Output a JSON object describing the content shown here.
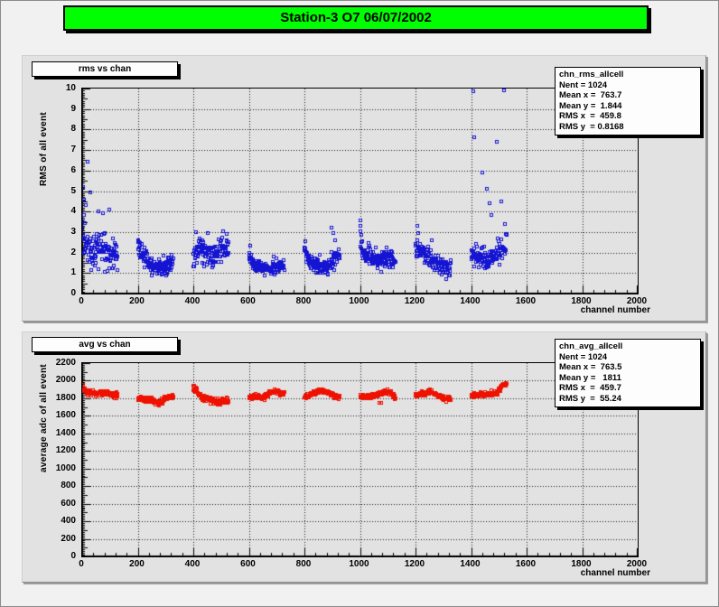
{
  "window": {
    "title": "Station-3 O7 06/07/2002",
    "title_bg": "#00ff00"
  },
  "top_plot": {
    "title": "rms vs chan",
    "y_title": "RMS of all event",
    "x_title": "channel number",
    "stats_lines": [
      "chn_rms_allcell",
      "Nent = 1024  ",
      "Mean x =  763.7",
      "Mean y =  1.844",
      "RMS x  =  459.8",
      "RMS y  = 0.8168"
    ]
  },
  "bottom_plot": {
    "title": "avg vs chan",
    "y_title": "average adc of all event",
    "x_title": "channel number",
    "stats_lines": [
      "chn_avg_allcell",
      "Nent = 1024  ",
      "Mean x =  763.5",
      "Mean y =   1811",
      "RMS x  =  459.7",
      "RMS y  =  55.24"
    ]
  },
  "chart_data": [
    {
      "type": "scatter",
      "title": "rms vs chan",
      "xlabel": "channel number",
      "ylabel": "RMS of all event",
      "xlim": [
        0,
        2000
      ],
      "ylim": [
        0,
        10
      ],
      "x_major": 200,
      "x_minor": 40,
      "y_major": 1,
      "y_mid": 0.5,
      "y_minor": 0.1,
      "grid": "dotted",
      "marker": "open-square",
      "marker_color": "#1414d2",
      "stats": {
        "name": "chn_rms_allcell",
        "entries": 1024,
        "mean_x": 763.7,
        "mean_y": 1.844,
        "rms_x": 459.8,
        "rms_y": 0.8168
      },
      "groups": [
        {
          "seed": 101,
          "n": 128,
          "x_start": 0,
          "x_step": 1,
          "sigma": 0.42,
          "ctrl": [
            [
              0,
              3.1
            ],
            [
              12,
              2.7
            ],
            [
              25,
              2.1
            ],
            [
              45,
              2.0
            ],
            [
              62,
              2.5
            ],
            [
              78,
              2.2
            ],
            [
              100,
              2.0
            ],
            [
              127,
              2.05
            ]
          ],
          "outliers": {
            "2": 5.2,
            "5": 4.6,
            "8": 3.85,
            "14": 4.3,
            "20": 6.45,
            "28": 4.95,
            "58": 4.0,
            "74": 3.9,
            "96": 4.1,
            "34": 1.15,
            "60": 1.2,
            "82": 1.05
          }
        },
        {
          "seed": 102,
          "n": 128,
          "x_start": 200,
          "x_step": 1,
          "sigma": 0.22,
          "ctrl": [
            [
              0,
              2.15
            ],
            [
              25,
              1.8
            ],
            [
              55,
              1.35
            ],
            [
              85,
              1.3
            ],
            [
              110,
              1.5
            ],
            [
              127,
              1.6
            ]
          ],
          "outliers": {
            "3": 2.6,
            "7": 2.45,
            "90": 0.95
          }
        },
        {
          "seed": 103,
          "n": 128,
          "x_start": 400,
          "x_step": 1,
          "sigma": 0.3,
          "ctrl": [
            [
              0,
              1.8
            ],
            [
              20,
              2.2
            ],
            [
              45,
              2.0
            ],
            [
              70,
              1.8
            ],
            [
              95,
              2.2
            ],
            [
              127,
              2.3
            ]
          ],
          "outliers": {
            "10": 3.0,
            "52": 2.95,
            "120": 2.9
          }
        },
        {
          "seed": 104,
          "n": 128,
          "x_start": 600,
          "x_step": 1,
          "sigma": 0.14,
          "ctrl": [
            [
              0,
              1.75
            ],
            [
              20,
              1.45
            ],
            [
              45,
              1.3
            ],
            [
              75,
              1.2
            ],
            [
              100,
              1.3
            ],
            [
              127,
              1.45
            ]
          ],
          "outliers": {
            "4": 2.35,
            "88": 1.8
          }
        },
        {
          "seed": 105,
          "n": 128,
          "x_start": 800,
          "x_step": 1,
          "sigma": 0.2,
          "ctrl": [
            [
              0,
              2.05
            ],
            [
              20,
              1.6
            ],
            [
              50,
              1.35
            ],
            [
              80,
              1.25
            ],
            [
              105,
              1.6
            ],
            [
              127,
              1.95
            ]
          ],
          "outliers": {
            "98": 3.2,
            "104": 2.95,
            "112": 2.6
          }
        },
        {
          "seed": 106,
          "n": 128,
          "x_start": 1000,
          "x_step": 1,
          "sigma": 0.24,
          "ctrl": [
            [
              0,
              2.5
            ],
            [
              15,
              2.0
            ],
            [
              45,
              1.75
            ],
            [
              80,
              1.6
            ],
            [
              105,
              1.7
            ],
            [
              127,
              1.5
            ]
          ],
          "outliers": {
            "0": 3.55,
            "1": 3.3,
            "2": 3.05,
            "4": 2.85
          }
        },
        {
          "seed": 107,
          "n": 128,
          "x_start": 1200,
          "x_step": 1,
          "sigma": 0.24,
          "ctrl": [
            [
              0,
              2.2
            ],
            [
              30,
              1.95
            ],
            [
              60,
              1.6
            ],
            [
              95,
              1.3
            ],
            [
              127,
              1.05
            ]
          ],
          "outliers": {
            "6": 3.3,
            "10": 2.95,
            "60": 2.6
          }
        },
        {
          "seed": 108,
          "n": 128,
          "x_start": 1400,
          "x_step": 1,
          "sigma": 0.28,
          "ctrl": [
            [
              0,
              1.95
            ],
            [
              25,
              1.8
            ],
            [
              55,
              1.7
            ],
            [
              90,
              1.95
            ],
            [
              115,
              2.3
            ],
            [
              127,
              2.5
            ]
          ],
          "outliers": {
            "8": 9.85,
            "118": 9.9,
            "12": 7.6,
            "92": 7.4,
            "40": 5.9,
            "58": 5.1,
            "66": 4.4,
            "72": 3.85,
            "110": 4.5,
            "122": 3.4,
            "125": 2.9
          }
        }
      ]
    },
    {
      "type": "scatter",
      "title": "avg vs chan",
      "xlabel": "channel number",
      "ylabel": "average adc of all event",
      "xlim": [
        0,
        2000
      ],
      "ylim": [
        0,
        2200
      ],
      "x_major": 200,
      "x_minor": 40,
      "y_major": 200,
      "y_mid": 100,
      "y_minor": 20,
      "grid": "dotted",
      "marker": "open-square",
      "marker_color": "#ee1100",
      "stats": {
        "name": "chn_avg_allcell",
        "entries": 1024,
        "mean_x": 763.5,
        "mean_y": 1811,
        "rms_x": 459.7,
        "rms_y": 55.24
      },
      "groups": [
        {
          "seed": 201,
          "n": 128,
          "x_start": 0,
          "x_step": 1,
          "sigma": 16,
          "ctrl": [
            [
              0,
              1925
            ],
            [
              8,
              1900
            ],
            [
              20,
              1865
            ],
            [
              50,
              1855
            ],
            [
              75,
              1865
            ],
            [
              100,
              1850
            ],
            [
              127,
              1830
            ]
          ],
          "outliers": {}
        },
        {
          "seed": 202,
          "n": 128,
          "x_start": 200,
          "x_step": 1,
          "sigma": 14,
          "ctrl": [
            [
              0,
              1795
            ],
            [
              25,
              1785
            ],
            [
              55,
              1770
            ],
            [
              80,
              1745
            ],
            [
              100,
              1800
            ],
            [
              127,
              1825
            ]
          ],
          "outliers": {}
        },
        {
          "seed": 203,
          "n": 128,
          "x_start": 400,
          "x_step": 1,
          "sigma": 16,
          "ctrl": [
            [
              0,
              1905
            ],
            [
              12,
              1880
            ],
            [
              28,
              1815
            ],
            [
              55,
              1800
            ],
            [
              80,
              1755
            ],
            [
              105,
              1770
            ],
            [
              127,
              1760
            ]
          ],
          "outliers": {}
        },
        {
          "seed": 204,
          "n": 128,
          "x_start": 600,
          "x_step": 1,
          "sigma": 14,
          "ctrl": [
            [
              0,
              1805
            ],
            [
              25,
              1830
            ],
            [
              50,
              1795
            ],
            [
              75,
              1865
            ],
            [
              100,
              1875
            ],
            [
              127,
              1845
            ]
          ],
          "outliers": {}
        },
        {
          "seed": 205,
          "n": 128,
          "x_start": 800,
          "x_step": 1,
          "sigma": 14,
          "ctrl": [
            [
              0,
              1800
            ],
            [
              25,
              1850
            ],
            [
              55,
              1880
            ],
            [
              85,
              1865
            ],
            [
              110,
              1820
            ],
            [
              127,
              1815
            ]
          ],
          "outliers": {}
        },
        {
          "seed": 206,
          "n": 128,
          "x_start": 1000,
          "x_step": 1,
          "sigma": 14,
          "ctrl": [
            [
              0,
              1820
            ],
            [
              30,
              1810
            ],
            [
              60,
              1835
            ],
            [
              90,
              1880
            ],
            [
              110,
              1860
            ],
            [
              127,
              1800
            ]
          ],
          "outliers": {
            "70": 1750,
            "75": 1745
          }
        },
        {
          "seed": 207,
          "n": 128,
          "x_start": 1200,
          "x_step": 1,
          "sigma": 12,
          "ctrl": [
            [
              0,
              1835
            ],
            [
              30,
              1850
            ],
            [
              55,
              1880
            ],
            [
              80,
              1830
            ],
            [
              105,
              1795
            ],
            [
              127,
              1790
            ]
          ],
          "outliers": {}
        },
        {
          "seed": 208,
          "n": 128,
          "x_start": 1400,
          "x_step": 1,
          "sigma": 13,
          "ctrl": [
            [
              0,
              1825
            ],
            [
              35,
              1835
            ],
            [
              70,
              1845
            ],
            [
              95,
              1860
            ],
            [
              110,
              1945
            ],
            [
              127,
              1965
            ]
          ],
          "outliers": {}
        }
      ]
    }
  ]
}
